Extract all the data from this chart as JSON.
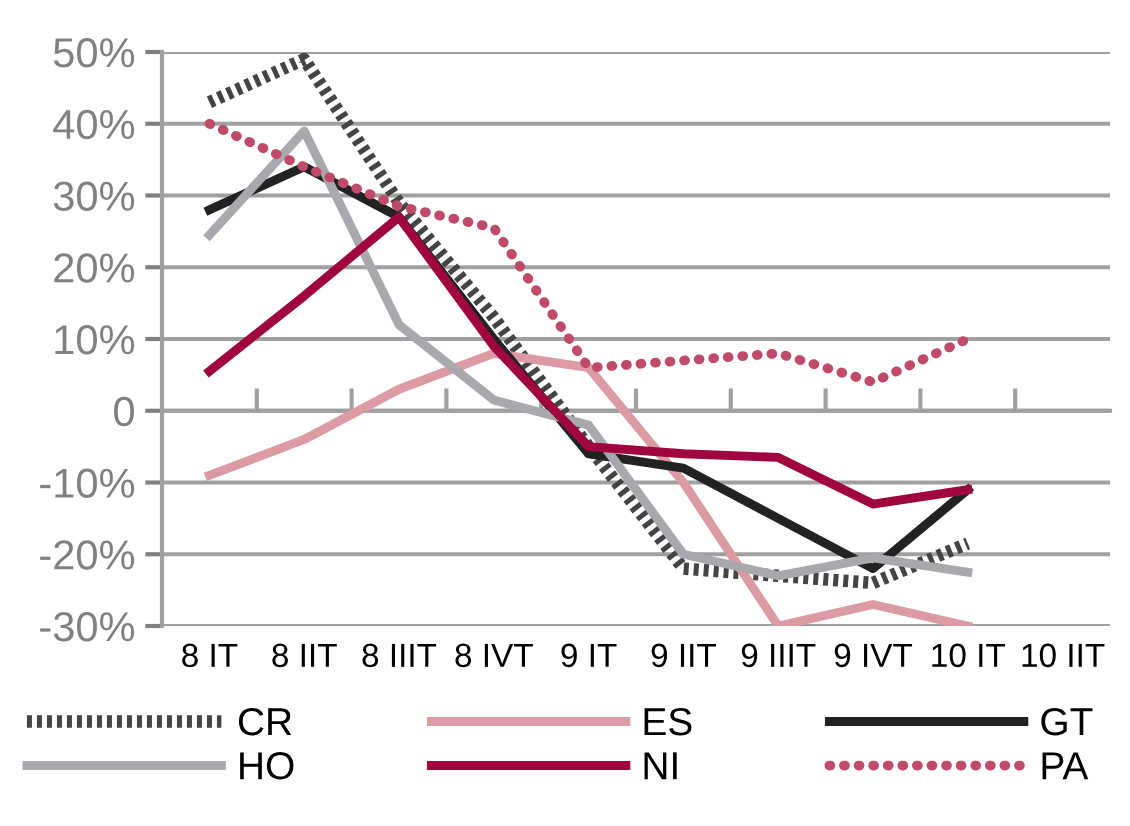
{
  "chart_data": {
    "type": "line",
    "categories": [
      "8 IT",
      "8 IIT",
      "8 IIIT",
      "8 IVT",
      "9 IT",
      "9 IIT",
      "9 IIIT",
      "9 IVT",
      "10 IT",
      "10 IIT"
    ],
    "series": [
      {
        "name": "CR",
        "color": "#444444",
        "line_style": "dashed",
        "values": [
          43,
          49,
          29,
          13,
          -5,
          -22,
          -23,
          -24,
          -18.5,
          null
        ]
      },
      {
        "name": "ES",
        "color": "#dc9aa2",
        "values": [
          -9,
          -4,
          3,
          8,
          6,
          -10,
          -30,
          -27,
          -30,
          null
        ]
      },
      {
        "name": "GT",
        "color": "#222222",
        "values": [
          28,
          34,
          27,
          10,
          -6,
          -8,
          -15,
          -22,
          -11,
          null
        ]
      },
      {
        "name": "HO",
        "color": "#a9a9ad",
        "values": [
          24.5,
          39,
          12,
          1.5,
          -2,
          -20,
          -23,
          -20.5,
          -22.5,
          null
        ]
      },
      {
        "name": "NI",
        "color": "#a0053f",
        "values": [
          5.5,
          16,
          27,
          9,
          -5,
          -6,
          -6.5,
          -13,
          -11,
          null
        ]
      },
      {
        "name": "PA",
        "color": "#c04a6a",
        "line_style": "dotted",
        "values": [
          40,
          34,
          28.5,
          25.5,
          6,
          7,
          8,
          4,
          10,
          null
        ]
      }
    ],
    "ylim": [
      -30,
      50
    ],
    "yticks": [
      {
        "value": -30,
        "label": "-30%"
      },
      {
        "value": -20,
        "label": "-20%"
      },
      {
        "value": -10,
        "label": "-10%"
      },
      {
        "value": 0,
        "label": "0"
      },
      {
        "value": 10,
        "label": "10%"
      },
      {
        "value": 20,
        "label": "20%"
      },
      {
        "value": 30,
        "label": "30%"
      },
      {
        "value": 40,
        "label": "40%"
      },
      {
        "value": 50,
        "label": "50%"
      }
    ],
    "grid": "y",
    "legend": "bottom",
    "marker": "none"
  }
}
